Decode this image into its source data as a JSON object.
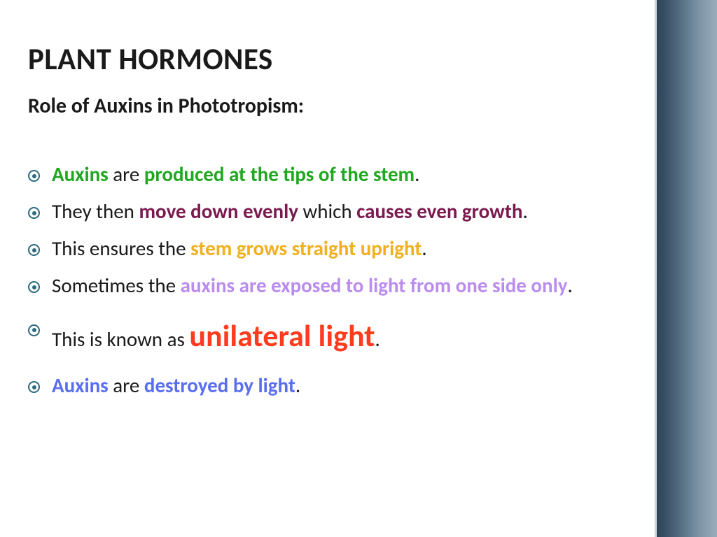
{
  "colors": {
    "text": "#1a1a1a",
    "green": "#1fa81f",
    "maroon": "#7b1a4f",
    "gold": "#f0b020",
    "pink": "#ee82ee",
    "violet": "#ba8cf0",
    "orange": "#ff3b1e",
    "slateblue": "#5a6ef0",
    "bullet": "#2a6a7c"
  },
  "title": "PLANT HORMONES",
  "subtitle": "Role of Auxins in Phototropism:",
  "bullets": [
    {
      "segments": [
        {
          "text": "Auxins",
          "bold": true,
          "colorKey": "green"
        },
        {
          "text": " are ",
          "bold": false,
          "colorKey": "text"
        },
        {
          "text": "produced at the tips of the stem",
          "bold": true,
          "colorKey": "green"
        },
        {
          "text": ".",
          "bold": false,
          "colorKey": "text"
        }
      ]
    },
    {
      "segments": [
        {
          "text": "They then ",
          "bold": false,
          "colorKey": "text"
        },
        {
          "text": "move down evenly",
          "bold": true,
          "colorKey": "maroon"
        },
        {
          "text": " which ",
          "bold": false,
          "colorKey": "text"
        },
        {
          "text": "causes even growth",
          "bold": true,
          "colorKey": "maroon"
        },
        {
          "text": ".",
          "bold": false,
          "colorKey": "text"
        }
      ]
    },
    {
      "segments": [
        {
          "text": "This ensures the ",
          "bold": false,
          "colorKey": "text"
        },
        {
          "text": "stem grows straight upright",
          "bold": true,
          "colorKey": "gold"
        },
        {
          "text": ".",
          "bold": false,
          "colorKey": "text"
        }
      ]
    },
    {
      "segments": [
        {
          "text": "Sometimes  the ",
          "bold": false,
          "colorKey": "text"
        },
        {
          "text": "auxins are exposed to light from one side only",
          "bold": true,
          "colorKey": "violet"
        },
        {
          "text": ".",
          "bold": false,
          "colorKey": "text"
        }
      ]
    },
    {
      "spacedTop": true,
      "segments": [
        {
          "text": "This is known as ",
          "bold": false,
          "colorKey": "text"
        },
        {
          "text": "unilateral light",
          "bold": true,
          "colorKey": "orange",
          "big": true
        },
        {
          "text": ".",
          "bold": false,
          "colorKey": "text"
        }
      ]
    },
    {
      "spacedTop": true,
      "segments": [
        {
          "text": "Auxins",
          "bold": true,
          "colorKey": "slateblue"
        },
        {
          "text": " are ",
          "bold": false,
          "colorKey": "text"
        },
        {
          "text": "destroyed by light",
          "bold": true,
          "colorKey": "slateblue"
        },
        {
          "text": ".",
          "bold": false,
          "colorKey": "text"
        }
      ]
    }
  ]
}
